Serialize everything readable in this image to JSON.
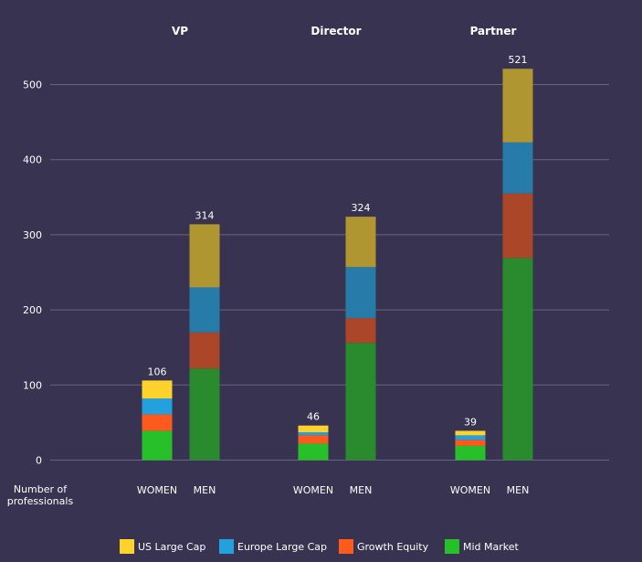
{
  "chart_data": {
    "type": "bar",
    "stacked": true,
    "ylabel": "Number of\nprofessionals",
    "ylim": [
      0,
      500
    ],
    "yticks": [
      0,
      100,
      200,
      300,
      400,
      500
    ],
    "grid": true,
    "legend_position": "bottom",
    "groups": [
      {
        "name": "VP",
        "bars": [
          {
            "label": "WOMEN",
            "total": 106,
            "segments": [
              39,
              22,
              21,
              24
            ]
          },
          {
            "label": "MEN",
            "total": 314,
            "segments": [
              122,
              48,
              60,
              84
            ]
          }
        ]
      },
      {
        "name": "Director",
        "bars": [
          {
            "label": "WOMEN",
            "total": 46,
            "segments": [
              22,
              11,
              4,
              9
            ]
          },
          {
            "label": "MEN",
            "total": 324,
            "segments": [
              156,
              33,
              68,
              67
            ]
          }
        ]
      },
      {
        "name": "Partner",
        "bars": [
          {
            "label": "WOMEN",
            "total": 39,
            "segments": [
              19,
              8,
              6,
              6
            ]
          },
          {
            "label": "MEN",
            "total": 521,
            "segments": [
              269,
              86,
              68,
              98
            ]
          }
        ]
      }
    ],
    "series": [
      {
        "name": "Mid Market",
        "women_color": "#27c02a",
        "men_color": "#2a8a2e"
      },
      {
        "name": "Growth Equity",
        "women_color": "#fe5a1e",
        "men_color": "#ab4628"
      },
      {
        "name": "Europe Large Cap",
        "women_color": "#23a1df",
        "men_color": "#267ba8"
      },
      {
        "name": "US Large Cap",
        "women_color": "#fdd22a",
        "men_color": "#b09630"
      }
    ],
    "legend_order": [
      "US Large Cap",
      "Europe Large Cap",
      "Growth Equity",
      "Mid Market"
    ]
  },
  "colors": {
    "background": "#383350",
    "gridline": "#6a6585",
    "axis_text": "#ffffff"
  }
}
